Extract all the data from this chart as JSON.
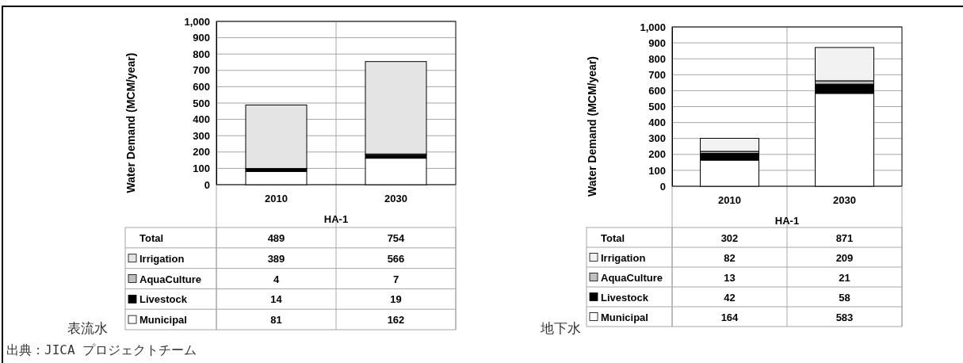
{
  "chart_data": [
    {
      "type": "bar",
      "title": "表流水",
      "ylabel": "Water Demand (MCM/year)",
      "xlabel": "HA-1",
      "categories": [
        "2010",
        "2030"
      ],
      "stacked": true,
      "series": [
        {
          "name": "Municipal",
          "color": "#ffffff",
          "values": [
            81,
            162
          ]
        },
        {
          "name": "Livestock",
          "color": "#000000",
          "values": [
            14,
            19
          ]
        },
        {
          "name": "AquaCulture",
          "color": "#bfbfbf",
          "values": [
            4,
            7
          ]
        },
        {
          "name": "Irrigation",
          "color": "#e4e4e4",
          "values": [
            389,
            566
          ]
        }
      ],
      "data_labels": true,
      "legend": "bottom",
      "grid": "y",
      "ylim": [
        0,
        1000
      ],
      "yticks": [
        0,
        100,
        200,
        300,
        400,
        500,
        600,
        700,
        800,
        900,
        {
          "value": 1000,
          "label": "1,000"
        }
      ],
      "annotations": [
        "Total",
        "489",
        "754",
        "出典：JICA プロジェクトチーム"
      ]
    },
    {
      "type": "bar",
      "title": "地下水",
      "ylabel": "Water Demand (MCM/year)",
      "xlabel": "HA-1",
      "categories": [
        "2010",
        "2030"
      ],
      "stacked": true,
      "series": [
        {
          "name": "Municipal",
          "color": "#ffffff",
          "values": [
            164,
            583
          ]
        },
        {
          "name": "Livestock",
          "color": "#000000",
          "values": [
            42,
            58
          ]
        },
        {
          "name": "AquaCulture",
          "color": "#bfbfbf",
          "values": [
            13,
            21
          ]
        },
        {
          "name": "Irrigation",
          "color": "#f2f2f2",
          "values": [
            82,
            209
          ]
        }
      ],
      "data_labels": true,
      "legend": "bottom",
      "grid": "y",
      "ylim": [
        0,
        1000
      ],
      "yticks": [
        0,
        100,
        200,
        300,
        400,
        500,
        600,
        700,
        800,
        900,
        {
          "value": 1000,
          "label": "1,000"
        }
      ],
      "annotations": [
        "Total",
        "302",
        "871"
      ]
    }
  ]
}
